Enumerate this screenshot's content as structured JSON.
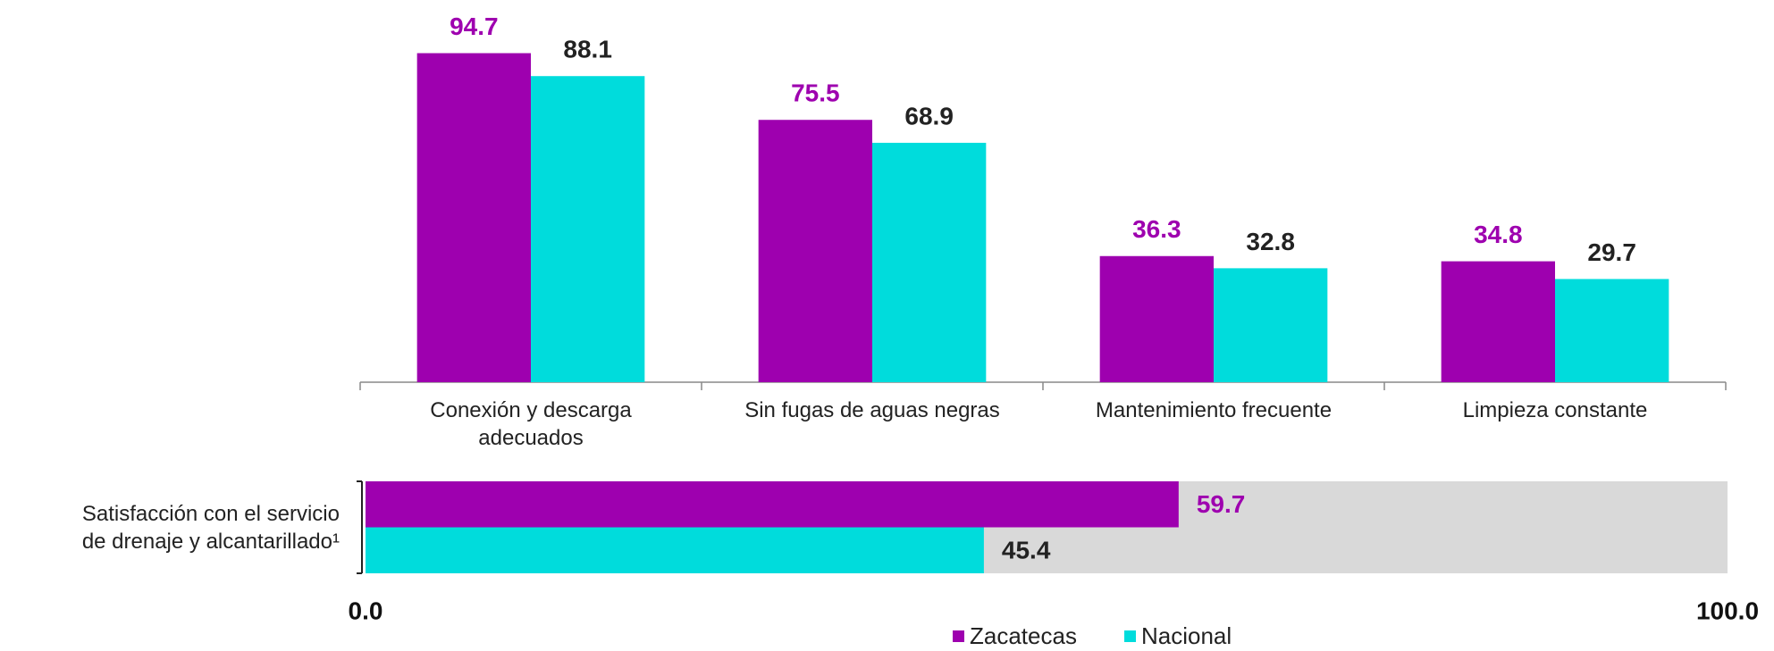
{
  "chart_data": [
    {
      "type": "bar",
      "categories": [
        "Conexión y descarga\nadecuados",
        "Sin fugas de aguas negras",
        "Mantenimiento frecuente",
        "Limpieza constante"
      ],
      "series": [
        {
          "name": "Zacatecas",
          "color": "#9e00af",
          "label_color": "#9e00af",
          "values": [
            94.7,
            75.5,
            36.3,
            34.8
          ]
        },
        {
          "name": "Nacional",
          "color": "#00dcdc",
          "label_color": "#222222",
          "values": [
            88.1,
            68.9,
            32.8,
            29.7
          ]
        }
      ],
      "ylim": [
        0,
        110
      ]
    },
    {
      "type": "barh",
      "categories": [
        "Satisfacción con el servicio\nde drenaje y alcantarillado¹"
      ],
      "series": [
        {
          "color": "#9e00af",
          "label_color": "#9e00af",
          "values": [
            59.7
          ]
        },
        {
          "color": "#00dcdc",
          "label_color": "#222222",
          "values": [
            45.4
          ]
        }
      ],
      "xlim": [
        0,
        100
      ],
      "xticks": [
        {
          "value": 0,
          "label": "0.0"
        },
        {
          "value": 100,
          "label": "100.0"
        }
      ],
      "background": "#d9d9d9"
    }
  ]
}
